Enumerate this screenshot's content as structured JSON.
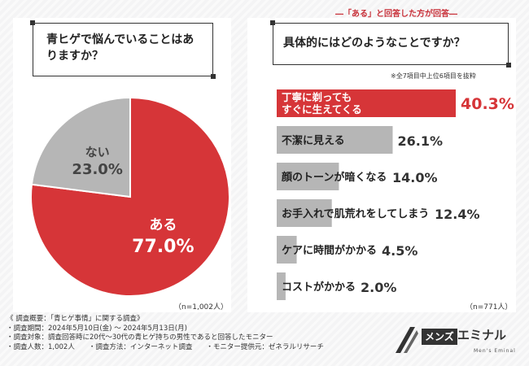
{
  "header_note": "―「ある」と回答した方が回答―",
  "left": {
    "question": "青ヒゲで悩んでいることはありますか？",
    "n_label": "（n=1,002人）"
  },
  "right": {
    "question": "具体的にはどのようなことですか？",
    "note": "※全7項目中上位6項目を抜粋",
    "n_label": "（n=771人）"
  },
  "colors": {
    "accent": "#d63538",
    "gray": "#b6b6b6"
  },
  "chart_data": [
    {
      "type": "pie",
      "title": "青ヒゲで悩んでいることはありますか？",
      "slices": [
        {
          "label": "ある",
          "value": 77.0,
          "display": "77.0%",
          "color": "#d63538"
        },
        {
          "label": "ない",
          "value": 23.0,
          "display": "23.0%",
          "color": "#b6b6b6"
        }
      ]
    },
    {
      "type": "bar",
      "orientation": "horizontal",
      "title": "具体的にはどのようなことですか？",
      "categories": [
        "丁寧に剃ってもすぐに生えてくる",
        "不潔に見える",
        "顔のトーンが暗くなる",
        "お手入れで肌荒れをしてしまう",
        "ケアに時間がかかる",
        "コストがかかる"
      ],
      "category_lines": [
        [
          "丁寧に剃っても",
          "すぐに生えてくる"
        ],
        [
          "不潔に見える"
        ],
        [
          "顔のトーンが暗くなる"
        ],
        [
          "お手入れで肌荒れをしてしまう"
        ],
        [
          "ケアに時間がかかる"
        ],
        [
          "コストがかかる"
        ]
      ],
      "values": [
        40.3,
        26.1,
        14.0,
        12.4,
        4.5,
        2.0
      ],
      "value_labels": [
        "40.3%",
        "26.1%",
        "14.0%",
        "12.4%",
        "4.5%",
        "2.0%"
      ],
      "highlight_index": 0
    }
  ],
  "footer": {
    "lines": [
      "《 調査概要：「青ヒゲ事情」に関する調査》",
      "・調査期間：2024年5月10日(金) ～ 2024年5月13日(月)",
      "・調査対象：調査回答時に20代～30代の青ヒゲ持ちの男性であると回答したモニター",
      "・調査人数：1,002人　　・調査方法：インターネット調査　　・モニター提供元：ゼネラルリサーチ"
    ]
  },
  "logo": {
    "box_text": "メンズ",
    "text": "エミナル",
    "sub": "Men's Eminal"
  }
}
